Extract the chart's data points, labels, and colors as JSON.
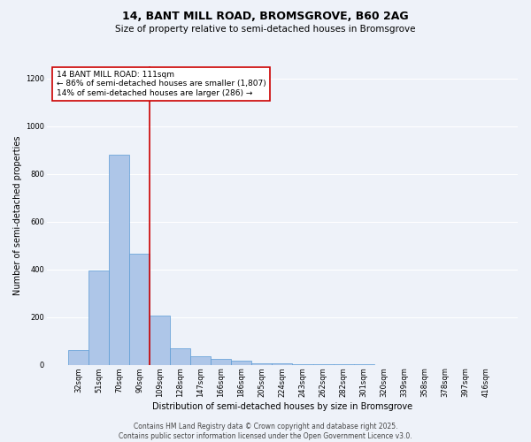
{
  "title1": "14, BANT MILL ROAD, BROMSGROVE, B60 2AG",
  "title2": "Size of property relative to semi-detached houses in Bromsgrove",
  "xlabel": "Distribution of semi-detached houses by size in Bromsgrove",
  "ylabel": "Number of semi-detached properties",
  "categories": [
    "32sqm",
    "51sqm",
    "70sqm",
    "90sqm",
    "109sqm",
    "128sqm",
    "147sqm",
    "166sqm",
    "186sqm",
    "205sqm",
    "224sqm",
    "243sqm",
    "262sqm",
    "282sqm",
    "301sqm",
    "320sqm",
    "339sqm",
    "358sqm",
    "378sqm",
    "397sqm",
    "416sqm"
  ],
  "values": [
    60,
    395,
    880,
    465,
    207,
    70,
    35,
    25,
    17,
    8,
    5,
    3,
    2,
    1,
    1,
    0,
    0,
    0,
    0,
    0,
    0
  ],
  "bar_color": "#aec6e8",
  "bar_edge_color": "#5b9bd5",
  "property_bar_index": 4,
  "vline_color": "#cc0000",
  "annotation_text": "14 BANT MILL ROAD: 111sqm\n← 86% of semi-detached houses are smaller (1,807)\n14% of semi-detached houses are larger (286) →",
  "annotation_box_color": "#ffffff",
  "annotation_edge_color": "#cc0000",
  "ylim": [
    0,
    1250
  ],
  "yticks": [
    0,
    200,
    400,
    600,
    800,
    1000,
    1200
  ],
  "background_color": "#eef2f9",
  "footer": "Contains HM Land Registry data © Crown copyright and database right 2025.\nContains public sector information licensed under the Open Government Licence v3.0.",
  "grid_color": "#ffffff",
  "title_fontsize": 9,
  "subtitle_fontsize": 7.5,
  "axis_label_fontsize": 7,
  "tick_fontsize": 6,
  "annotation_fontsize": 6.5,
  "footer_fontsize": 5.5
}
